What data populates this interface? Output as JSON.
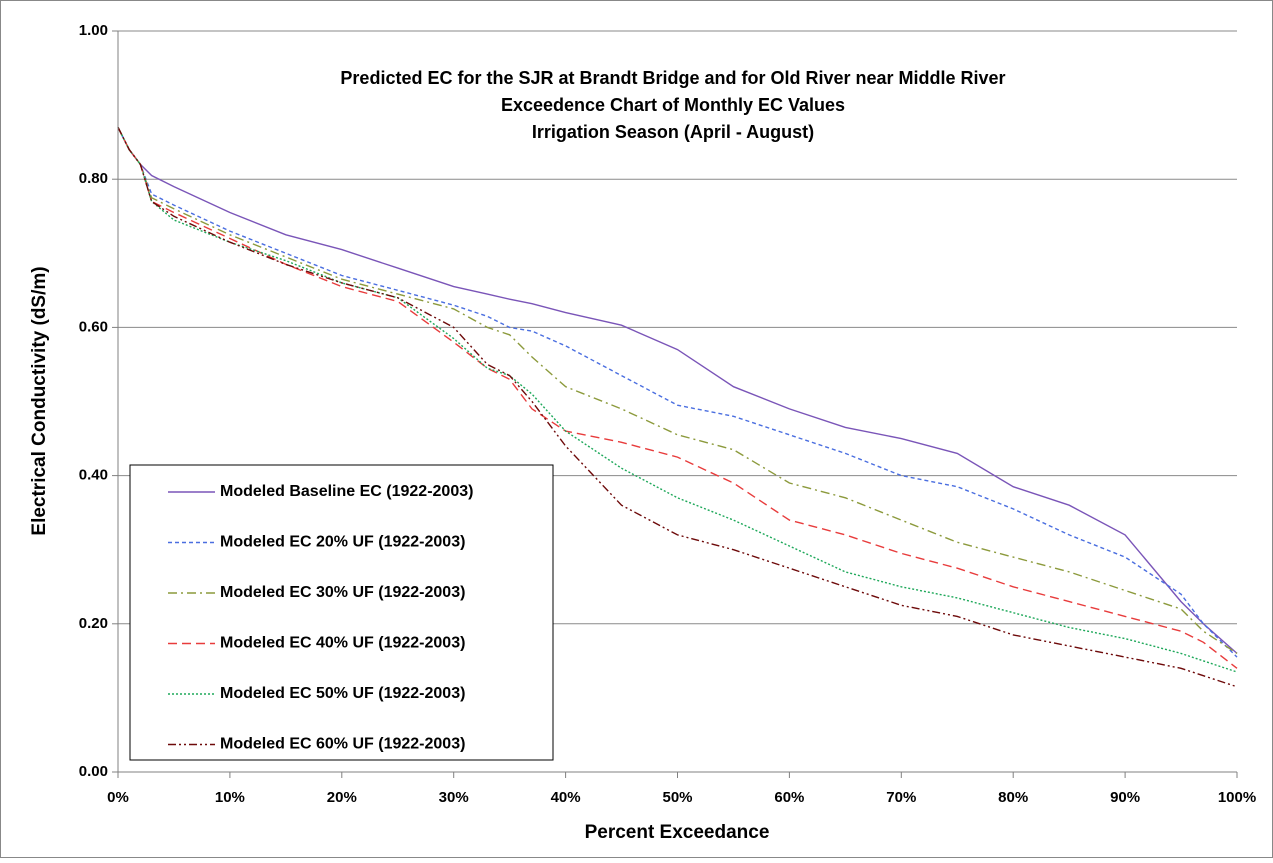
{
  "chart_data": {
    "type": "line",
    "title": [
      "Predicted EC for the SJR at Brandt Bridge and for Old River near Middle River",
      "Exceedence Chart of Monthly EC Values",
      "Irrigation Season (April - August)"
    ],
    "x_label": "Percent Exceedance",
    "y_label": "Electrical Conductivity (dS/m)",
    "x": [
      0,
      1,
      2,
      3,
      5,
      10,
      15,
      20,
      25,
      30,
      33,
      35,
      37,
      40,
      45,
      50,
      55,
      60,
      65,
      70,
      75,
      80,
      85,
      90,
      95,
      97,
      100
    ],
    "series": [
      {
        "name": "Modeled Baseline EC (1922-2003)",
        "color": "#7a55b8",
        "style": "solid",
        "values": [
          0.87,
          0.84,
          0.82,
          0.805,
          0.79,
          0.755,
          0.725,
          0.705,
          0.68,
          0.655,
          0.645,
          0.638,
          0.632,
          0.62,
          0.603,
          0.57,
          0.52,
          0.49,
          0.465,
          0.45,
          0.43,
          0.385,
          0.36,
          0.32,
          0.23,
          0.2,
          0.16
        ]
      },
      {
        "name": "Modeled EC 20% UF (1922-2003)",
        "color": "#4a6ee0",
        "style": "dash",
        "values": [
          0.87,
          0.84,
          0.82,
          0.78,
          0.765,
          0.73,
          0.7,
          0.67,
          0.65,
          0.63,
          0.615,
          0.6,
          0.595,
          0.575,
          0.535,
          0.495,
          0.48,
          0.455,
          0.43,
          0.4,
          0.385,
          0.355,
          0.32,
          0.29,
          0.24,
          0.2,
          0.155
        ]
      },
      {
        "name": "Modeled EC 30% UF (1922-2003)",
        "color": "#8c9a3c",
        "style": "dashdot",
        "values": [
          0.87,
          0.84,
          0.82,
          0.775,
          0.76,
          0.725,
          0.695,
          0.665,
          0.645,
          0.625,
          0.6,
          0.59,
          0.56,
          0.52,
          0.49,
          0.455,
          0.435,
          0.39,
          0.37,
          0.34,
          0.31,
          0.29,
          0.27,
          0.245,
          0.22,
          0.19,
          0.16
        ]
      },
      {
        "name": "Modeled EC 40% UF (1922-2003)",
        "color": "#e83c3c",
        "style": "longdash",
        "values": [
          0.87,
          0.84,
          0.82,
          0.77,
          0.755,
          0.72,
          0.685,
          0.655,
          0.635,
          0.58,
          0.545,
          0.53,
          0.49,
          0.46,
          0.445,
          0.425,
          0.39,
          0.34,
          0.32,
          0.295,
          0.275,
          0.25,
          0.23,
          0.21,
          0.19,
          0.175,
          0.14
        ]
      },
      {
        "name": "Modeled EC 50% UF (1922-2003)",
        "color": "#1ea85a",
        "style": "dot",
        "values": [
          0.87,
          0.84,
          0.82,
          0.77,
          0.745,
          0.715,
          0.69,
          0.66,
          0.64,
          0.585,
          0.545,
          0.535,
          0.51,
          0.46,
          0.41,
          0.37,
          0.34,
          0.305,
          0.27,
          0.25,
          0.235,
          0.215,
          0.195,
          0.18,
          0.16,
          0.15,
          0.135
        ]
      },
      {
        "name": "Modeled EC 60% UF (1922-2003)",
        "color": "#6e0a0a",
        "style": "dashdotdot",
        "values": [
          0.87,
          0.84,
          0.82,
          0.77,
          0.75,
          0.715,
          0.685,
          0.66,
          0.64,
          0.6,
          0.55,
          0.535,
          0.5,
          0.44,
          0.36,
          0.32,
          0.3,
          0.275,
          0.25,
          0.225,
          0.21,
          0.185,
          0.17,
          0.155,
          0.14,
          0.13,
          0.115
        ]
      }
    ],
    "xlim": [
      0,
      100
    ],
    "xticks": [
      {
        "value": 0,
        "label": "0%"
      },
      {
        "value": 10,
        "label": "10%"
      },
      {
        "value": 20,
        "label": "20%"
      },
      {
        "value": 30,
        "label": "30%"
      },
      {
        "value": 40,
        "label": "40%"
      },
      {
        "value": 50,
        "label": "50%"
      },
      {
        "value": 60,
        "label": "60%"
      },
      {
        "value": 70,
        "label": "70%"
      },
      {
        "value": 80,
        "label": "80%"
      },
      {
        "value": 90,
        "label": "90%"
      },
      {
        "value": 100,
        "label": "100%"
      }
    ],
    "ylim": [
      0,
      1
    ],
    "yticks": [
      {
        "value": 0,
        "label": "0.00"
      },
      {
        "value": 0.2,
        "label": "0.20"
      },
      {
        "value": 0.4,
        "label": "0.40"
      },
      {
        "value": 0.6,
        "label": "0.60"
      },
      {
        "value": 0.8,
        "label": "0.80"
      },
      {
        "value": 1,
        "label": "1.00"
      }
    ],
    "grid": true,
    "legend": "bottom-left"
  }
}
